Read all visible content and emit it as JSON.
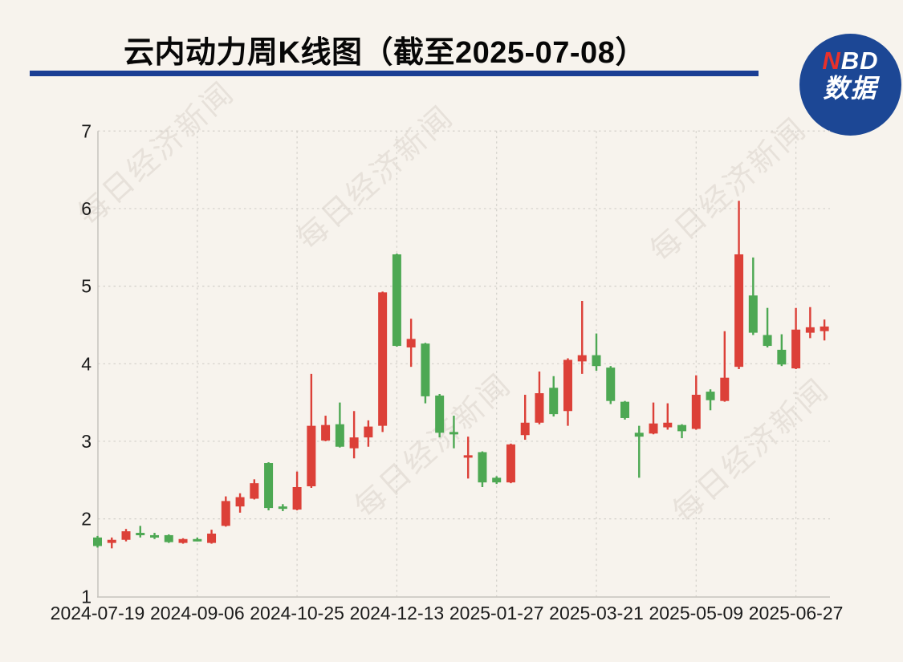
{
  "page": {
    "background": "#f7f3ed",
    "title": "云内动力周K线图（截至2025-07-08）",
    "title_underline_color": "#1b3e94",
    "logo": {
      "circle_color": "#1c4795",
      "line1_red": "N",
      "line1_white": "BD",
      "line2": "数据",
      "accent_red": "#e8312b"
    },
    "watermark": {
      "text": "每日经济新闻",
      "color": "rgba(120,108,90,0.13)"
    }
  },
  "chart_data": {
    "type": "candlestick",
    "title": "云内动力周K线图（截至2025-07-08）",
    "xlabel": "",
    "ylabel": "",
    "ylim": [
      1,
      7
    ],
    "y_ticks": [
      1,
      2,
      3,
      4,
      5,
      6,
      7
    ],
    "grid": "dashed",
    "legend": "none",
    "up_color": "#dc4038",
    "down_color": "#4da853",
    "grid_color": "#d3d0ca",
    "axis_color": "#c6c3bd",
    "label_color": "#1b1b1b",
    "x_ticks": [
      {
        "label": "2024-07-19",
        "i": 0
      },
      {
        "label": "2024-09-06",
        "i": 7
      },
      {
        "label": "2024-10-25",
        "i": 14
      },
      {
        "label": "2024-12-13",
        "i": 21
      },
      {
        "label": "2025-01-27",
        "i": 28
      },
      {
        "label": "2025-03-21",
        "i": 35
      },
      {
        "label": "2025-05-09",
        "i": 42
      },
      {
        "label": "2025-06-27",
        "i": 49
      }
    ],
    "candles": [
      {
        "d": "2024-07-19",
        "o": 1.76,
        "h": 1.78,
        "l": 1.63,
        "c": 1.65
      },
      {
        "d": "2024-07-26",
        "o": 1.69,
        "h": 1.76,
        "l": 1.62,
        "c": 1.73
      },
      {
        "d": "2024-08-02",
        "o": 1.73,
        "h": 1.87,
        "l": 1.71,
        "c": 1.84
      },
      {
        "d": "2024-08-09",
        "o": 1.82,
        "h": 1.91,
        "l": 1.76,
        "c": 1.8
      },
      {
        "d": "2024-08-16",
        "o": 1.79,
        "h": 1.82,
        "l": 1.74,
        "c": 1.77
      },
      {
        "d": "2024-08-23",
        "o": 1.79,
        "h": 1.8,
        "l": 1.69,
        "c": 1.7
      },
      {
        "d": "2024-08-30",
        "o": 1.69,
        "h": 1.75,
        "l": 1.68,
        "c": 1.74
      },
      {
        "d": "2024-09-06",
        "o": 1.74,
        "h": 1.76,
        "l": 1.71,
        "c": 1.72
      },
      {
        "d": "2024-09-13",
        "o": 1.69,
        "h": 1.86,
        "l": 1.68,
        "c": 1.81
      },
      {
        "d": "2024-09-20",
        "o": 1.91,
        "h": 2.29,
        "l": 1.9,
        "c": 2.23
      },
      {
        "d": "2024-09-27",
        "o": 2.16,
        "h": 2.33,
        "l": 2.08,
        "c": 2.28
      },
      {
        "d": "2024-09-30",
        "o": 2.26,
        "h": 2.51,
        "l": 2.25,
        "c": 2.46
      },
      {
        "d": "2024-10-11",
        "o": 2.72,
        "h": 2.73,
        "l": 2.11,
        "c": 2.14
      },
      {
        "d": "2024-10-18",
        "o": 2.16,
        "h": 2.19,
        "l": 2.1,
        "c": 2.14
      },
      {
        "d": "2024-10-25",
        "o": 2.12,
        "h": 2.61,
        "l": 2.11,
        "c": 2.41
      },
      {
        "d": "2024-11-01",
        "o": 2.42,
        "h": 3.87,
        "l": 2.4,
        "c": 3.2
      },
      {
        "d": "2024-11-08",
        "o": 3.01,
        "h": 3.33,
        "l": 3.0,
        "c": 3.21
      },
      {
        "d": "2024-11-15",
        "o": 3.22,
        "h": 3.5,
        "l": 2.92,
        "c": 2.93
      },
      {
        "d": "2024-11-22",
        "o": 2.91,
        "h": 3.39,
        "l": 2.78,
        "c": 3.05
      },
      {
        "d": "2024-11-29",
        "o": 3.05,
        "h": 3.27,
        "l": 2.93,
        "c": 3.19
      },
      {
        "d": "2024-12-06",
        "o": 3.2,
        "h": 4.93,
        "l": 3.12,
        "c": 4.92
      },
      {
        "d": "2024-12-13",
        "o": 5.41,
        "h": 5.42,
        "l": 4.22,
        "c": 4.23
      },
      {
        "d": "2024-12-20",
        "o": 4.21,
        "h": 4.58,
        "l": 3.96,
        "c": 4.32
      },
      {
        "d": "2024-12-27",
        "o": 4.26,
        "h": 4.27,
        "l": 3.49,
        "c": 3.58
      },
      {
        "d": "2025-01-03",
        "o": 3.59,
        "h": 3.61,
        "l": 3.05,
        "c": 3.11
      },
      {
        "d": "2025-01-10",
        "o": 3.12,
        "h": 3.33,
        "l": 2.91,
        "c": 3.1
      },
      {
        "d": "2025-01-17",
        "o": 2.8,
        "h": 3.06,
        "l": 2.52,
        "c": 2.82
      },
      {
        "d": "2025-01-24",
        "o": 2.86,
        "h": 2.87,
        "l": 2.41,
        "c": 2.47
      },
      {
        "d": "2025-01-27",
        "o": 2.53,
        "h": 2.55,
        "l": 2.45,
        "c": 2.47
      },
      {
        "d": "2025-02-07",
        "o": 2.47,
        "h": 2.97,
        "l": 2.46,
        "c": 2.96
      },
      {
        "d": "2025-02-14",
        "o": 3.08,
        "h": 3.6,
        "l": 3.02,
        "c": 3.24
      },
      {
        "d": "2025-02-21",
        "o": 3.24,
        "h": 3.9,
        "l": 3.22,
        "c": 3.62
      },
      {
        "d": "2025-02-28",
        "o": 3.69,
        "h": 3.84,
        "l": 3.32,
        "c": 3.35
      },
      {
        "d": "2025-03-07",
        "o": 3.39,
        "h": 4.07,
        "l": 3.2,
        "c": 4.05
      },
      {
        "d": "2025-03-14",
        "o": 4.03,
        "h": 4.81,
        "l": 3.87,
        "c": 4.11
      },
      {
        "d": "2025-03-21",
        "o": 4.11,
        "h": 4.39,
        "l": 3.91,
        "c": 3.97
      },
      {
        "d": "2025-03-28",
        "o": 3.95,
        "h": 3.97,
        "l": 3.48,
        "c": 3.52
      },
      {
        "d": "2025-04-03",
        "o": 3.51,
        "h": 3.52,
        "l": 3.28,
        "c": 3.3
      },
      {
        "d": "2025-04-11",
        "o": 3.11,
        "h": 3.2,
        "l": 2.53,
        "c": 3.06
      },
      {
        "d": "2025-04-18",
        "o": 3.1,
        "h": 3.5,
        "l": 3.09,
        "c": 3.23
      },
      {
        "d": "2025-04-25",
        "o": 3.18,
        "h": 3.49,
        "l": 3.15,
        "c": 3.24
      },
      {
        "d": "2025-04-30",
        "o": 3.21,
        "h": 3.22,
        "l": 3.04,
        "c": 3.13
      },
      {
        "d": "2025-05-09",
        "o": 3.16,
        "h": 3.85,
        "l": 3.15,
        "c": 3.6
      },
      {
        "d": "2025-05-16",
        "o": 3.64,
        "h": 3.67,
        "l": 3.4,
        "c": 3.53
      },
      {
        "d": "2025-05-23",
        "o": 3.52,
        "h": 4.42,
        "l": 3.51,
        "c": 3.82
      },
      {
        "d": "2025-05-30",
        "o": 3.96,
        "h": 6.1,
        "l": 3.93,
        "c": 5.41
      },
      {
        "d": "2025-06-06",
        "o": 4.88,
        "h": 5.37,
        "l": 4.37,
        "c": 4.4
      },
      {
        "d": "2025-06-13",
        "o": 4.37,
        "h": 4.72,
        "l": 4.21,
        "c": 4.23
      },
      {
        "d": "2025-06-20",
        "o": 4.18,
        "h": 4.38,
        "l": 3.97,
        "c": 3.99
      },
      {
        "d": "2025-06-27",
        "o": 3.94,
        "h": 4.72,
        "l": 3.93,
        "c": 4.44
      },
      {
        "d": "2025-07-04",
        "o": 4.4,
        "h": 4.73,
        "l": 4.33,
        "c": 4.47
      },
      {
        "d": "2025-07-08",
        "o": 4.42,
        "h": 4.57,
        "l": 4.3,
        "c": 4.48
      }
    ]
  }
}
